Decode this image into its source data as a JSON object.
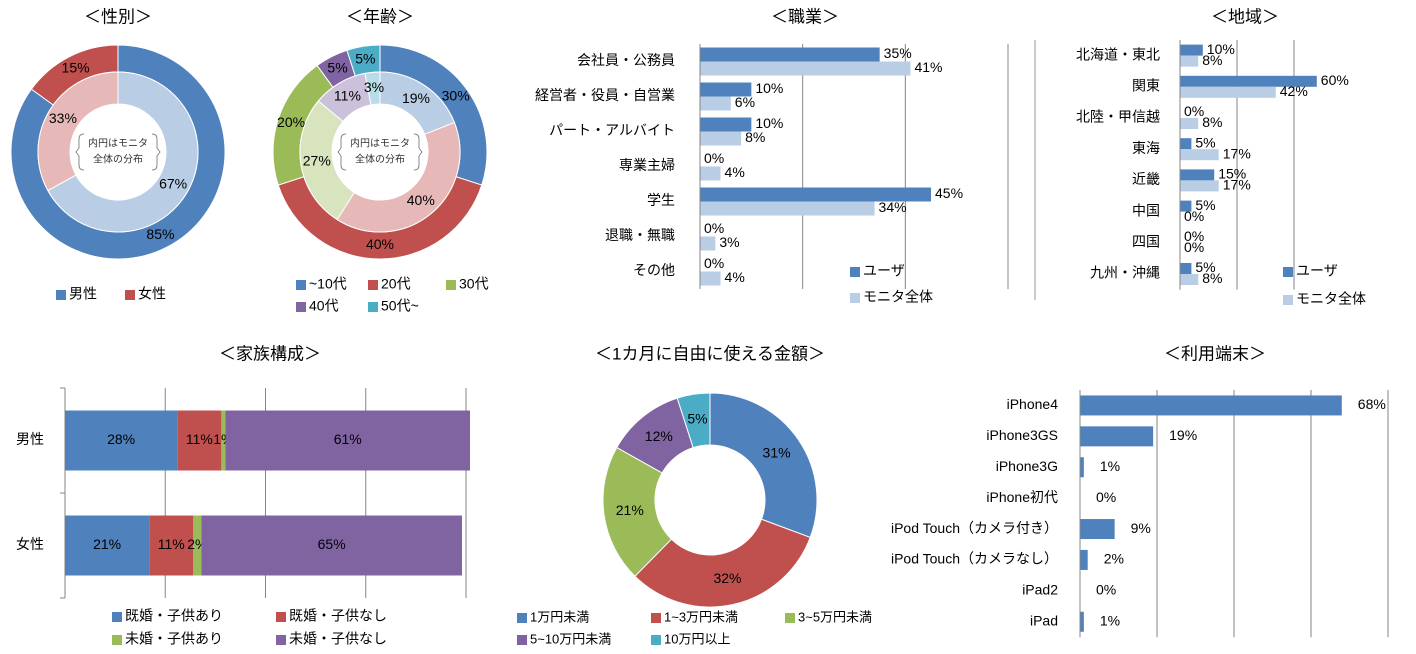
{
  "chart_data": [
    {
      "type": "donut",
      "title": "＜性別＞",
      "categories": [
        "男性",
        "女性"
      ],
      "note": [
        "内円はモニタ",
        "全体の分布"
      ],
      "rings": [
        {
          "values": [
            85,
            15
          ],
          "value_labels": [
            "85%",
            "15%"
          ],
          "colors": [
            "#4f81bd",
            "#c0504d"
          ]
        },
        {
          "values": [
            67,
            33
          ],
          "value_labels": [
            "67%",
            "33%"
          ],
          "colors": [
            "#b9cde5",
            "#e6b9b8"
          ]
        }
      ]
    },
    {
      "type": "donut",
      "title": "＜年齢＞",
      "categories": [
        "~10代",
        "20代",
        "30代",
        "40代",
        "50代~"
      ],
      "note": [
        "内円はモニタ",
        "全体の分布"
      ],
      "rings": [
        {
          "values": [
            30,
            40,
            20,
            5,
            5
          ],
          "value_labels": [
            "30%",
            "40%",
            "20%",
            "5%",
            "5%"
          ],
          "colors": [
            "#4f81bd",
            "#c0504d",
            "#9bbb59",
            "#8064a2",
            "#4bacc6"
          ]
        },
        {
          "values": [
            19,
            40,
            27,
            11,
            3
          ],
          "value_labels": [
            "19%",
            "40%",
            "27%",
            "11%",
            "3%"
          ],
          "colors": [
            "#b9cde5",
            "#e6b9b8",
            "#d7e4bd",
            "#ccc1da",
            "#b7dee8"
          ]
        }
      ]
    },
    {
      "type": "hbar",
      "title": "＜職業＞",
      "categories": [
        "会社員・公務員",
        "経営者・役員・自営業",
        "パート・アルバイト",
        "専業主婦",
        "学生",
        "退職・無職",
        "その他"
      ],
      "series": [
        {
          "name": "ユーザ",
          "color": "#4f81bd",
          "values": [
            35,
            10,
            10,
            0,
            45,
            0,
            0
          ],
          "value_labels": [
            "35%",
            "10%",
            "10%",
            "0%",
            "45%",
            "0%",
            "0%"
          ]
        },
        {
          "name": "モニタ全体",
          "color": "#b9cde5",
          "values": [
            41,
            6,
            8,
            4,
            34,
            3,
            4
          ],
          "value_labels": [
            "41%",
            "6%",
            "8%",
            "4%",
            "34%",
            "3%",
            "4%"
          ]
        }
      ],
      "xlim": [
        0,
        60
      ],
      "xticks": [
        0,
        20,
        40,
        60
      ],
      "grid": true
    },
    {
      "type": "hbar",
      "title": "＜地域＞",
      "categories": [
        "北海道・東北",
        "関東",
        "北陸・甲信越",
        "東海",
        "近畿",
        "中国",
        "四国",
        "九州・沖縄"
      ],
      "series": [
        {
          "name": "ユーザ",
          "color": "#4f81bd",
          "values": [
            10,
            60,
            0,
            5,
            15,
            5,
            0,
            5
          ],
          "value_labels": [
            "10%",
            "60%",
            "0%",
            "5%",
            "15%",
            "5%",
            "0%",
            "5%"
          ]
        },
        {
          "name": "モニタ全体",
          "color": "#b9cde5",
          "values": [
            8,
            42,
            8,
            17,
            17,
            0,
            0,
            8
          ],
          "value_labels": [
            "8%",
            "42%",
            "8%",
            "17%",
            "17%",
            "0%",
            "0%",
            "8%"
          ]
        }
      ],
      "xlim": [
        0,
        75
      ],
      "xticks": [
        0,
        25,
        50
      ],
      "grid": true
    },
    {
      "type": "stacked_hbar",
      "title": "＜家族構成＞",
      "categories": [
        "男性",
        "女性"
      ],
      "series": [
        {
          "name": "既婚・子供あり",
          "color": "#4f81bd",
          "values": [
            28,
            21
          ],
          "value_labels": [
            "28%",
            "21%"
          ]
        },
        {
          "name": "既婚・子供なし",
          "color": "#c0504d",
          "values": [
            11,
            11
          ],
          "value_labels": [
            "11%",
            "11%"
          ]
        },
        {
          "name": "未婚・子供あり",
          "color": "#9bbb59",
          "values": [
            1,
            2
          ],
          "value_labels": [
            "1%",
            "2%"
          ]
        },
        {
          "name": "未婚・子供なし",
          "color": "#8064a2",
          "values": [
            61,
            65
          ],
          "value_labels": [
            "61%",
            "65%"
          ]
        }
      ],
      "xlim": [
        0,
        100
      ],
      "xticks": [
        0,
        25,
        50,
        75,
        100
      ],
      "grid": true
    },
    {
      "type": "donut",
      "title": "＜1カ月に自由に使える金額＞",
      "categories": [
        "1万円未満",
        "1~3万円未満",
        "3~5万円未満",
        "5~10万円未満",
        "10万円以上"
      ],
      "rings": [
        {
          "values": [
            31,
            32,
            21,
            12,
            5
          ],
          "value_labels": [
            "31%",
            "32%",
            "21%",
            "12%",
            "5%"
          ],
          "colors": [
            "#4f81bd",
            "#c0504d",
            "#9bbb59",
            "#8064a2",
            "#4bacc6"
          ]
        }
      ]
    },
    {
      "type": "hbar",
      "title": "＜利用端末＞",
      "categories": [
        "iPhone4",
        "iPhone3GS",
        "iPhone3G",
        "iPhone初代",
        "iPod Touch（カメラ付き）",
        "iPod Touch（カメラなし）",
        "iPad2",
        "iPad"
      ],
      "series": [
        {
          "color": "#4f81bd",
          "values": [
            68,
            19,
            1,
            0,
            9,
            2,
            0,
            1
          ],
          "value_labels": [
            "68%",
            "19%",
            "1%",
            "0%",
            "9%",
            "2%",
            "0%",
            "1%"
          ]
        }
      ],
      "xlim": [
        0,
        80
      ],
      "xticks": [
        0,
        20,
        40,
        60,
        80
      ],
      "grid": true
    }
  ]
}
